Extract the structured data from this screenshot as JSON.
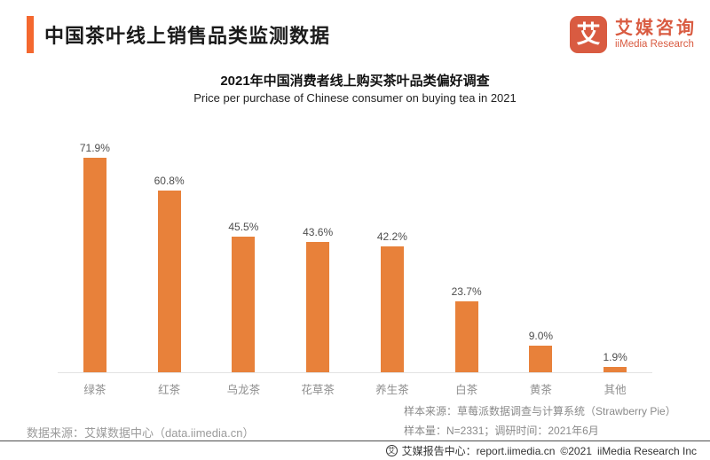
{
  "header": {
    "title": "中国茶叶线上销售品类监测数据",
    "logo": {
      "icon_char": "艾",
      "name_cn": "艾媒咨询",
      "name_en": "iiMedia Research"
    }
  },
  "chart_data": {
    "type": "bar",
    "title": "2021年中国消费者线上购买茶叶品类偏好调查",
    "subtitle": "Price per purchase of Chinese consumer on buying tea in 2021",
    "categories": [
      "绿茶",
      "红茶",
      "乌龙茶",
      "花草茶",
      "养生茶",
      "白茶",
      "黄茶",
      "其他"
    ],
    "values": [
      71.9,
      60.8,
      45.5,
      43.6,
      42.2,
      23.7,
      9.0,
      1.9
    ],
    "value_labels": [
      "71.9%",
      "60.8%",
      "45.5%",
      "43.6%",
      "42.2%",
      "23.7%",
      "9.0%",
      "1.9%"
    ],
    "xlabel": "",
    "ylabel": "",
    "ylim": [
      0,
      80
    ],
    "grid": false,
    "legend": false,
    "bar_color": "#E8813A"
  },
  "notes": {
    "source_left": "数据来源：艾媒数据中心（data.iimedia.cn）",
    "sample_source": "样本来源：草莓派数据调查与计算系统（Strawberry Pie）",
    "sample_size": "样本量：N=2331；调研时间：2021年6月"
  },
  "footer": {
    "icon_char": "艾",
    "report_center": "艾媒报告中心：report.iimedia.cn",
    "copyright": "©2021",
    "company": "iiMedia Research Inc"
  },
  "colors": {
    "accent": "#F4682F",
    "bar": "#E8813A",
    "logo": "#D95B41"
  }
}
